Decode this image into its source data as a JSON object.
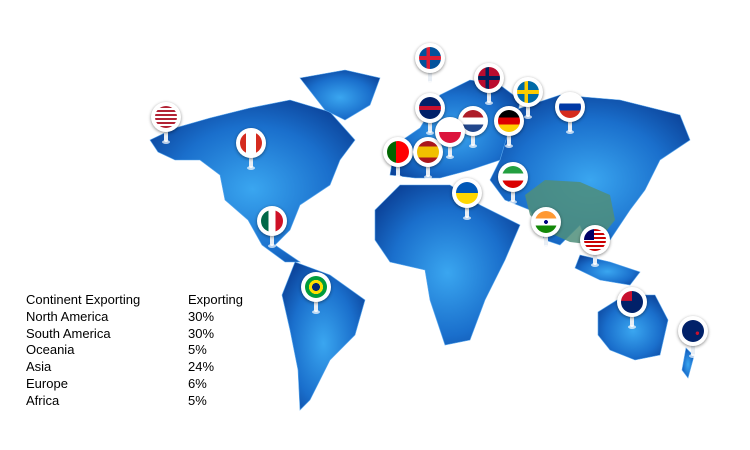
{
  "colors": {
    "land_light": "#2a8fe0",
    "land_dark": "#0a3f95",
    "china": "#4f8e7a"
  },
  "table": {
    "headers": [
      "Continent  Exporting",
      "Exporting"
    ],
    "rows": [
      [
        "North America",
        "30%"
      ],
      [
        "South America",
        "30%"
      ],
      [
        "Oceania",
        "5%"
      ],
      [
        "Asia",
        "24%"
      ],
      [
        "Europe",
        "6%"
      ],
      [
        "Africa",
        "5%"
      ]
    ]
  },
  "pins": [
    {
      "flag": "usa-flag-icon"
    },
    {
      "flag": "canada-flag-icon"
    },
    {
      "flag": "mexico-flag-icon"
    },
    {
      "flag": "brazil-flag-icon"
    },
    {
      "flag": "portugal-flag-icon"
    },
    {
      "flag": "spain-flag-icon"
    },
    {
      "flag": "uk-flag-icon"
    },
    {
      "flag": "iceland-flag-icon"
    },
    {
      "flag": "norway-flag-icon"
    },
    {
      "flag": "sweden-flag-icon"
    },
    {
      "flag": "russia-flag-icon"
    },
    {
      "flag": "netherlands-flag-icon"
    },
    {
      "flag": "germany-flag-icon"
    },
    {
      "flag": "poland-flag-icon"
    },
    {
      "flag": "ukraine-flag-icon"
    },
    {
      "flag": "iran-flag-icon"
    },
    {
      "flag": "india-flag-icon"
    },
    {
      "flag": "malaysia-flag-icon"
    },
    {
      "flag": "australia-flag-icon"
    },
    {
      "flag": "new-zealand-flag-icon"
    }
  ]
}
